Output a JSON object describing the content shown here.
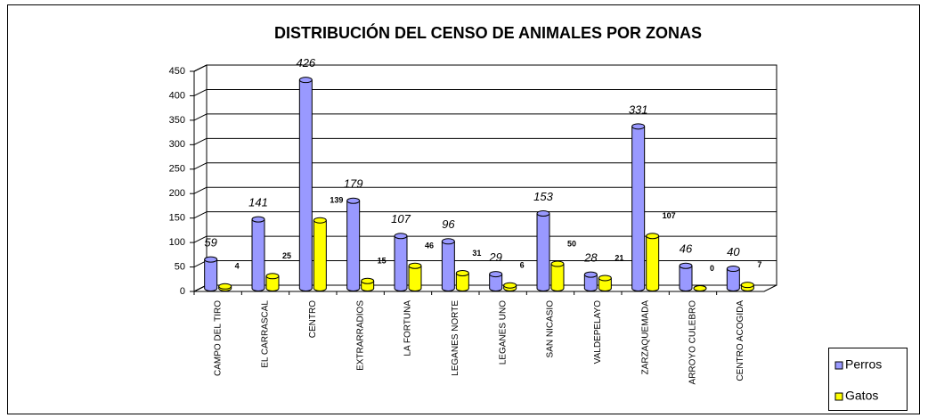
{
  "chart_data": {
    "type": "bar",
    "title": "DISTRIBUCIÓN DEL CENSO DE ANIMALES POR ZONAS",
    "categories": [
      "CAMPO DEL TIRO",
      "EL CARRASCAL",
      "CENTRO",
      "EXTRARRADIOS",
      "LA FORTUNA",
      "LEGANES NORTE",
      "LEGANES UNO",
      "SAN NICASIO",
      "VALDEPELAYO",
      "ZARZAQUEMADA",
      "ARROYO CULEBRO",
      "CENTRO ACOGIDA"
    ],
    "series": [
      {
        "name": "Perros",
        "color": "#9999ff",
        "values": [
          59,
          141,
          426,
          179,
          107,
          96,
          29,
          153,
          28,
          331,
          46,
          40
        ]
      },
      {
        "name": "Gatos",
        "color": "#ffff00",
        "values": [
          4,
          25,
          139,
          15,
          46,
          31,
          6,
          50,
          21,
          107,
          0,
          7
        ]
      }
    ],
    "ylim": [
      0,
      450
    ],
    "yticks": [
      0,
      50,
      100,
      150,
      200,
      250,
      300,
      350,
      400,
      450
    ],
    "grid": true,
    "legend": "bottom-right"
  }
}
